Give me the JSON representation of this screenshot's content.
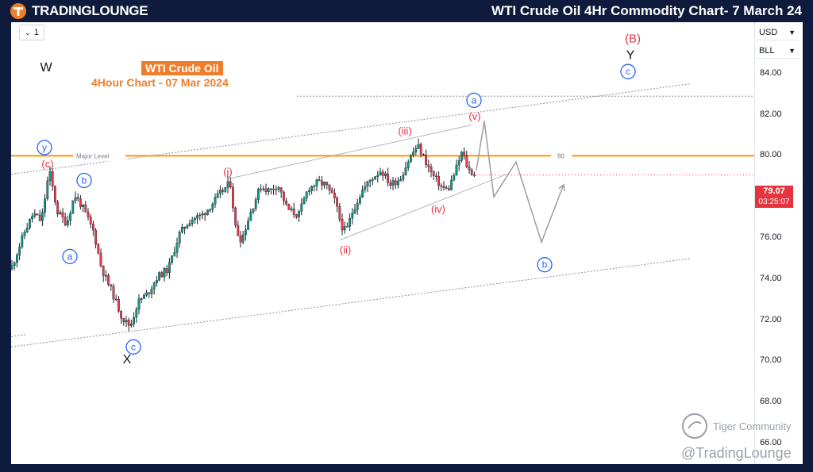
{
  "header": {
    "logo_text": "TRADINGLOUNGE",
    "title": "WTI Crude Oil 4Hr Commodity Chart- 7 March 24"
  },
  "toolbar": {
    "interval_label": "1",
    "currency": "USD",
    "unit": "BLL"
  },
  "chart_label": {
    "title": "WTI Crude Oil",
    "subtitle": "4Hour Chart - 07 Mar 2024"
  },
  "price": {
    "last": "79.07",
    "countdown": "03:25:07"
  },
  "watermark": {
    "community": "Tiger Community",
    "handle": "@TradingLounge"
  },
  "colors": {
    "up": "#089981",
    "down": "#f23645",
    "wave_red": "#e5343f",
    "wave_blue": "#2962ff",
    "major_level": "#ff9800",
    "projection": "#9e9e9e"
  },
  "chart_data": {
    "type": "candlestick",
    "title": "",
    "ylim": [
      65.0,
      86.5
    ],
    "yticks": [
      66.0,
      68.0,
      70.0,
      72.0,
      74.0,
      76.0,
      78.0,
      80.0,
      82.0,
      84.0
    ],
    "ytick_labels": [
      "66.00",
      "68.00",
      "70.00",
      "72.00",
      "74.00",
      "76.00",
      "78.00",
      "80.00",
      "82.00",
      "84.00"
    ],
    "last_price": 79.07,
    "major_level": {
      "label": "Major Level",
      "value": 80.0,
      "value_label": "80"
    },
    "price_path": [
      [
        0,
        74.5
      ],
      [
        18,
        76.4
      ],
      [
        28,
        77.2
      ],
      [
        38,
        76.8
      ],
      [
        48,
        79.3
      ],
      [
        58,
        77.3
      ],
      [
        70,
        76.7
      ],
      [
        80,
        78.1
      ],
      [
        90,
        77.5
      ],
      [
        104,
        76.3
      ],
      [
        114,
        74.5
      ],
      [
        128,
        73.3
      ],
      [
        140,
        72.1
      ],
      [
        150,
        71.7
      ],
      [
        160,
        72.9
      ],
      [
        172,
        73.3
      ],
      [
        184,
        74.1
      ],
      [
        198,
        74.5
      ],
      [
        212,
        76.2
      ],
      [
        226,
        76.9
      ],
      [
        240,
        77.1
      ],
      [
        252,
        77.6
      ],
      [
        264,
        78.2
      ],
      [
        276,
        78.7
      ],
      [
        283,
        76.4
      ],
      [
        290,
        75.9
      ],
      [
        302,
        77.3
      ],
      [
        314,
        78.5
      ],
      [
        326,
        78.3
      ],
      [
        336,
        78.6
      ],
      [
        348,
        77.4
      ],
      [
        362,
        77.1
      ],
      [
        374,
        78.4
      ],
      [
        386,
        78.7
      ],
      [
        396,
        78.6
      ],
      [
        408,
        77.8
      ],
      [
        416,
        76.6
      ],
      [
        422,
        76.3
      ],
      [
        430,
        77.3
      ],
      [
        442,
        78.3
      ],
      [
        454,
        78.9
      ],
      [
        466,
        79.3
      ],
      [
        478,
        78.6
      ],
      [
        490,
        78.9
      ],
      [
        502,
        79.9
      ],
      [
        512,
        80.5
      ],
      [
        520,
        79.9
      ],
      [
        530,
        79.1
      ],
      [
        542,
        78.5
      ],
      [
        550,
        78.3
      ],
      [
        560,
        79.3
      ],
      [
        568,
        80.2
      ],
      [
        576,
        79.3
      ],
      [
        586,
        79.07
      ]
    ],
    "projection": [
      [
        586,
        79.3
      ],
      [
        596,
        81.7
      ],
      [
        608,
        78.0
      ],
      [
        636,
        79.7
      ],
      [
        668,
        75.8
      ],
      [
        696,
        78.6
      ]
    ],
    "channels": [
      {
        "name": "outer-upper",
        "style": "dotted",
        "from": [
          0,
          79.1
        ],
        "to": [
          855,
          83.5
        ]
      },
      {
        "name": "outer-lower",
        "style": "dotted",
        "from": [
          0,
          70.7
        ],
        "to": [
          855,
          75.0
        ]
      },
      {
        "name": "horizontal",
        "style": "dotted",
        "from": [
          360,
          82.9
        ],
        "to": [
          936,
          82.9
        ]
      },
      {
        "name": "inner-upper",
        "style": "solid",
        "from": [
          276,
          78.9
        ],
        "to": [
          580,
          81.5
        ]
      },
      {
        "name": "inner-lower",
        "style": "solid",
        "from": [
          414,
          75.9
        ],
        "to": [
          624,
          79.1
        ]
      },
      {
        "name": "left-stub",
        "style": "dotted",
        "from": [
          0,
          71.2
        ],
        "to": [
          18,
          71.3
        ]
      }
    ],
    "wave_labels": [
      {
        "text": "W",
        "x": 44,
        "y": 84.3,
        "kind": "plain"
      },
      {
        "text": "y",
        "x": 42,
        "y": 80.4,
        "kind": "circle-blue"
      },
      {
        "text": "(c)",
        "x": 46,
        "y": 79.6,
        "kind": "red"
      },
      {
        "text": "b",
        "x": 92,
        "y": 78.8,
        "kind": "circle-blue"
      },
      {
        "text": "a",
        "x": 74,
        "y": 75.1,
        "kind": "circle-blue"
      },
      {
        "text": "c",
        "x": 154,
        "y": 70.7,
        "kind": "circle-blue"
      },
      {
        "text": "X",
        "x": 146,
        "y": 70.1,
        "kind": "plain"
      },
      {
        "text": "(i)",
        "x": 273,
        "y": 79.2,
        "kind": "red"
      },
      {
        "text": "(ii)",
        "x": 421,
        "y": 75.4,
        "kind": "red"
      },
      {
        "text": "(iii)",
        "x": 496,
        "y": 81.2,
        "kind": "red"
      },
      {
        "text": "(iv)",
        "x": 538,
        "y": 77.4,
        "kind": "red"
      },
      {
        "text": "(v)",
        "x": 584,
        "y": 81.9,
        "kind": "red"
      },
      {
        "text": "a",
        "x": 583,
        "y": 82.7,
        "kind": "circle-blue"
      },
      {
        "text": "b",
        "x": 672,
        "y": 74.7,
        "kind": "circle-blue"
      },
      {
        "text": "(B)",
        "x": 783,
        "y": 85.7,
        "kind": "red-large"
      },
      {
        "text": "Y",
        "x": 780,
        "y": 84.9,
        "kind": "plain"
      },
      {
        "text": "c",
        "x": 777,
        "y": 84.1,
        "kind": "circle-blue"
      }
    ]
  }
}
